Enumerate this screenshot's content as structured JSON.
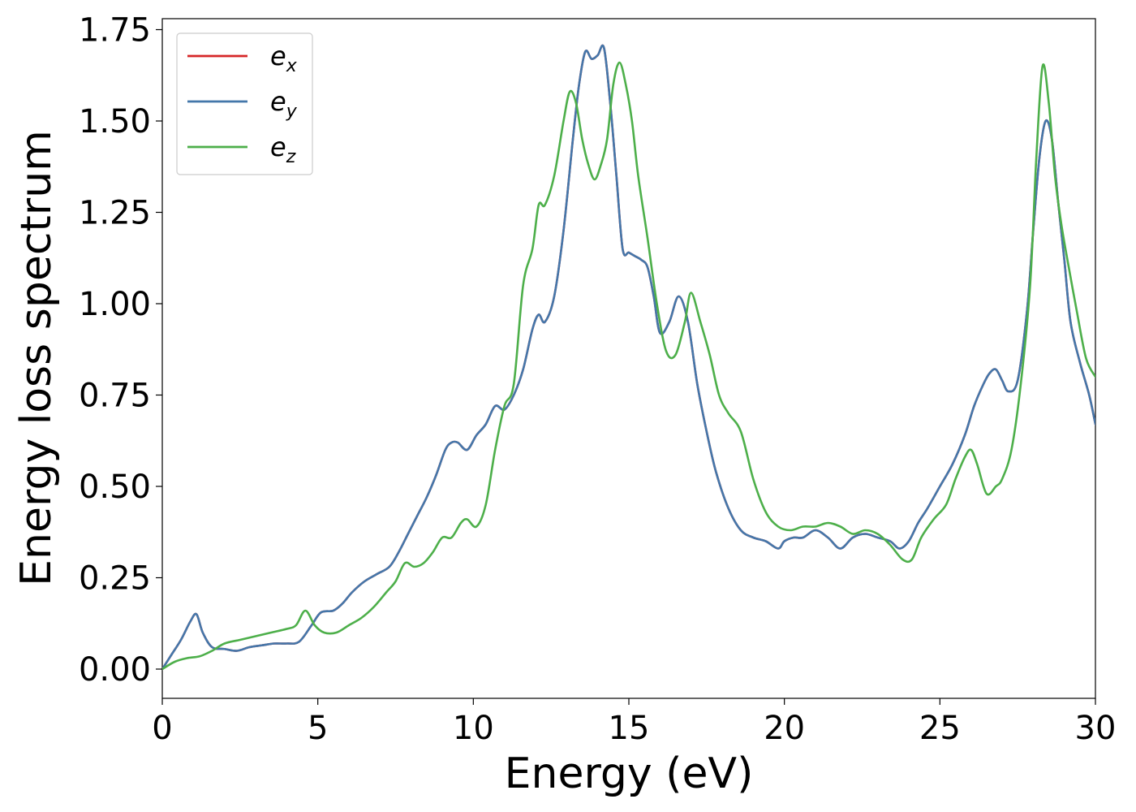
{
  "chart_data": {
    "type": "line",
    "xlabel": "Energy (eV)",
    "ylabel": "Energy loss spectrum",
    "xlim": [
      0,
      30
    ],
    "ylim": [
      -0.08,
      1.78
    ],
    "xticks": [
      0,
      5,
      10,
      15,
      20,
      25,
      30
    ],
    "xtick_labels": [
      "0",
      "5",
      "10",
      "15",
      "20",
      "25",
      "30"
    ],
    "yticks": [
      0,
      0.25,
      0.5,
      0.75,
      1.0,
      1.25,
      1.5,
      1.75
    ],
    "ytick_labels": [
      "0.00",
      "0.25",
      "0.50",
      "0.75",
      "1.00",
      "1.25",
      "1.50",
      "1.75"
    ],
    "grid": false,
    "legend_position": "upper-left",
    "series": [
      {
        "name": "e_x",
        "label_base": "e",
        "label_sub": "x",
        "color": "#d62728",
        "x": [
          0,
          0.3,
          0.6,
          0.9,
          1.1,
          1.3,
          1.6,
          2.0,
          2.4,
          2.8,
          3.2,
          3.6,
          4.0,
          4.4,
          4.8,
          5.1,
          5.5,
          5.8,
          6.1,
          6.5,
          6.9,
          7.3,
          7.6,
          7.9,
          8.2,
          8.5,
          8.8,
          9.1,
          9.3,
          9.5,
          9.8,
          10.1,
          10.4,
          10.7,
          11.0,
          11.3,
          11.6,
          11.9,
          12.1,
          12.3,
          12.6,
          12.9,
          13.2,
          13.4,
          13.6,
          13.8,
          14.0,
          14.2,
          14.4,
          14.6,
          14.8,
          15.0,
          15.2,
          15.4,
          15.6,
          15.8,
          16.0,
          16.3,
          16.6,
          16.9,
          17.2,
          17.5,
          17.8,
          18.2,
          18.6,
          19.0,
          19.4,
          19.8,
          20.0,
          20.3,
          20.6,
          21.0,
          21.4,
          21.8,
          22.2,
          22.6,
          23.0,
          23.4,
          23.7,
          24.0,
          24.3,
          24.6,
          25.0,
          25.4,
          25.8,
          26.1,
          26.4,
          26.6,
          26.8,
          27.0,
          27.2,
          27.5,
          27.8,
          28.0,
          28.2,
          28.4,
          28.6,
          28.8,
          29.0,
          29.2,
          29.5,
          29.8,
          30
        ],
        "y": [
          0,
          0.04,
          0.08,
          0.13,
          0.15,
          0.1,
          0.06,
          0.055,
          0.05,
          0.06,
          0.065,
          0.07,
          0.07,
          0.075,
          0.12,
          0.155,
          0.16,
          0.18,
          0.21,
          0.24,
          0.26,
          0.28,
          0.32,
          0.37,
          0.42,
          0.47,
          0.53,
          0.6,
          0.62,
          0.62,
          0.6,
          0.64,
          0.67,
          0.72,
          0.71,
          0.75,
          0.82,
          0.93,
          0.97,
          0.95,
          1.02,
          1.2,
          1.45,
          1.6,
          1.69,
          1.67,
          1.68,
          1.7,
          1.55,
          1.35,
          1.15,
          1.14,
          1.13,
          1.12,
          1.1,
          1.02,
          0.92,
          0.95,
          1.02,
          0.95,
          0.78,
          0.65,
          0.54,
          0.44,
          0.38,
          0.36,
          0.35,
          0.33,
          0.35,
          0.36,
          0.36,
          0.38,
          0.36,
          0.33,
          0.36,
          0.37,
          0.36,
          0.35,
          0.33,
          0.35,
          0.4,
          0.44,
          0.5,
          0.56,
          0.64,
          0.72,
          0.78,
          0.81,
          0.82,
          0.79,
          0.76,
          0.79,
          0.98,
          1.2,
          1.4,
          1.5,
          1.45,
          1.28,
          1.12,
          0.95,
          0.84,
          0.75,
          0.67
        ]
      },
      {
        "name": "e_y",
        "label_base": "e",
        "label_sub": "y",
        "color": "#4477aa",
        "x": [
          0,
          0.3,
          0.6,
          0.9,
          1.1,
          1.3,
          1.6,
          2.0,
          2.4,
          2.8,
          3.2,
          3.6,
          4.0,
          4.4,
          4.8,
          5.1,
          5.5,
          5.8,
          6.1,
          6.5,
          6.9,
          7.3,
          7.6,
          7.9,
          8.2,
          8.5,
          8.8,
          9.1,
          9.3,
          9.5,
          9.8,
          10.1,
          10.4,
          10.7,
          11.0,
          11.3,
          11.6,
          11.9,
          12.1,
          12.3,
          12.6,
          12.9,
          13.2,
          13.4,
          13.6,
          13.8,
          14.0,
          14.2,
          14.4,
          14.6,
          14.8,
          15.0,
          15.2,
          15.4,
          15.6,
          15.8,
          16.0,
          16.3,
          16.6,
          16.9,
          17.2,
          17.5,
          17.8,
          18.2,
          18.6,
          19.0,
          19.4,
          19.8,
          20.0,
          20.3,
          20.6,
          21.0,
          21.4,
          21.8,
          22.2,
          22.6,
          23.0,
          23.4,
          23.7,
          24.0,
          24.3,
          24.6,
          25.0,
          25.4,
          25.8,
          26.1,
          26.4,
          26.6,
          26.8,
          27.0,
          27.2,
          27.5,
          27.8,
          28.0,
          28.2,
          28.4,
          28.6,
          28.8,
          29.0,
          29.2,
          29.5,
          29.8,
          30
        ],
        "y": [
          0,
          0.04,
          0.08,
          0.13,
          0.15,
          0.1,
          0.06,
          0.055,
          0.05,
          0.06,
          0.065,
          0.07,
          0.07,
          0.075,
          0.12,
          0.155,
          0.16,
          0.18,
          0.21,
          0.24,
          0.26,
          0.28,
          0.32,
          0.37,
          0.42,
          0.47,
          0.53,
          0.6,
          0.62,
          0.62,
          0.6,
          0.64,
          0.67,
          0.72,
          0.71,
          0.75,
          0.82,
          0.93,
          0.97,
          0.95,
          1.02,
          1.2,
          1.45,
          1.6,
          1.69,
          1.67,
          1.68,
          1.7,
          1.55,
          1.35,
          1.15,
          1.14,
          1.13,
          1.12,
          1.1,
          1.02,
          0.92,
          0.95,
          1.02,
          0.95,
          0.78,
          0.65,
          0.54,
          0.44,
          0.38,
          0.36,
          0.35,
          0.33,
          0.35,
          0.36,
          0.36,
          0.38,
          0.36,
          0.33,
          0.36,
          0.37,
          0.36,
          0.35,
          0.33,
          0.35,
          0.4,
          0.44,
          0.5,
          0.56,
          0.64,
          0.72,
          0.78,
          0.81,
          0.82,
          0.79,
          0.76,
          0.79,
          0.98,
          1.2,
          1.4,
          1.5,
          1.45,
          1.28,
          1.12,
          0.95,
          0.84,
          0.75,
          0.67
        ]
      },
      {
        "name": "e_z",
        "label_base": "e",
        "label_sub": "z",
        "color": "#4daf4a",
        "x": [
          0,
          0.4,
          0.8,
          1.2,
          1.6,
          2.0,
          2.5,
          3.0,
          3.5,
          4.0,
          4.3,
          4.6,
          4.9,
          5.2,
          5.6,
          6.0,
          6.4,
          6.8,
          7.2,
          7.5,
          7.8,
          8.1,
          8.4,
          8.7,
          9.0,
          9.3,
          9.6,
          9.8,
          10.1,
          10.4,
          10.7,
          11.0,
          11.3,
          11.6,
          11.9,
          12.1,
          12.3,
          12.6,
          12.9,
          13.1,
          13.3,
          13.5,
          13.7,
          13.9,
          14.1,
          14.3,
          14.5,
          14.7,
          14.9,
          15.1,
          15.3,
          15.6,
          15.9,
          16.2,
          16.5,
          16.8,
          17.0,
          17.3,
          17.6,
          17.9,
          18.2,
          18.6,
          19.0,
          19.4,
          19.8,
          20.2,
          20.6,
          21.0,
          21.4,
          21.8,
          22.2,
          22.6,
          23.0,
          23.4,
          23.8,
          24.1,
          24.4,
          24.8,
          25.2,
          25.5,
          25.8,
          26.0,
          26.2,
          26.5,
          26.8,
          27.0,
          27.3,
          27.6,
          27.9,
          28.1,
          28.3,
          28.5,
          28.7,
          28.9,
          29.1,
          29.4,
          29.7,
          30
        ],
        "y": [
          0,
          0.02,
          0.03,
          0.035,
          0.05,
          0.07,
          0.08,
          0.09,
          0.1,
          0.11,
          0.12,
          0.16,
          0.12,
          0.1,
          0.1,
          0.12,
          0.14,
          0.17,
          0.21,
          0.24,
          0.29,
          0.28,
          0.29,
          0.32,
          0.36,
          0.36,
          0.4,
          0.41,
          0.39,
          0.45,
          0.6,
          0.72,
          0.78,
          1.05,
          1.15,
          1.27,
          1.27,
          1.35,
          1.5,
          1.58,
          1.55,
          1.45,
          1.38,
          1.34,
          1.38,
          1.45,
          1.6,
          1.66,
          1.6,
          1.5,
          1.35,
          1.18,
          1.0,
          0.87,
          0.86,
          0.95,
          1.03,
          0.95,
          0.86,
          0.75,
          0.7,
          0.65,
          0.52,
          0.43,
          0.39,
          0.38,
          0.39,
          0.39,
          0.4,
          0.39,
          0.37,
          0.38,
          0.37,
          0.34,
          0.3,
          0.3,
          0.36,
          0.41,
          0.45,
          0.52,
          0.58,
          0.6,
          0.56,
          0.48,
          0.5,
          0.52,
          0.6,
          0.78,
          1.05,
          1.4,
          1.65,
          1.55,
          1.35,
          1.22,
          1.12,
          0.98,
          0.85,
          0.8
        ]
      }
    ]
  }
}
